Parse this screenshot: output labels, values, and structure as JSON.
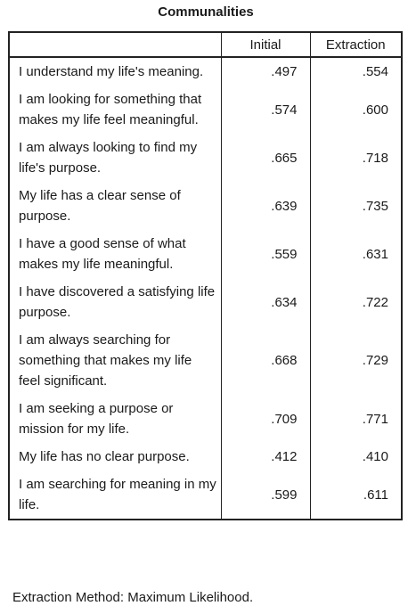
{
  "title": "Communalities",
  "headers": {
    "blank": "",
    "initial": "Initial",
    "extraction": "Extraction"
  },
  "rows": [
    {
      "label": "I understand my life's meaning.",
      "initial": ".497",
      "extraction": ".554"
    },
    {
      "label": "I am looking for something that makes my life feel meaningful.",
      "initial": ".574",
      "extraction": ".600"
    },
    {
      "label": "I am always looking to find my life's purpose.",
      "initial": ".665",
      "extraction": ".718"
    },
    {
      "label": "My life has a clear sense of purpose.",
      "initial": ".639",
      "extraction": ".735"
    },
    {
      "label": "I have a good sense of what makes my life meaningful.",
      "initial": ".559",
      "extraction": ".631"
    },
    {
      "label": "I have discovered a satisfying life purpose.",
      "initial": ".634",
      "extraction": ".722"
    },
    {
      "label": "I am always searching for something that makes my life feel significant.",
      "initial": ".668",
      "extraction": ".729"
    },
    {
      "label": "I am seeking a purpose or mission for my life.",
      "initial": ".709",
      "extraction": ".771"
    },
    {
      "label": "My life has no clear purpose.",
      "initial": ".412",
      "extraction": ".410"
    },
    {
      "label": "I am searching for meaning in my life.",
      "initial": ".599",
      "extraction": ".611"
    }
  ],
  "footnote": "Extraction Method: Maximum Likelihood."
}
